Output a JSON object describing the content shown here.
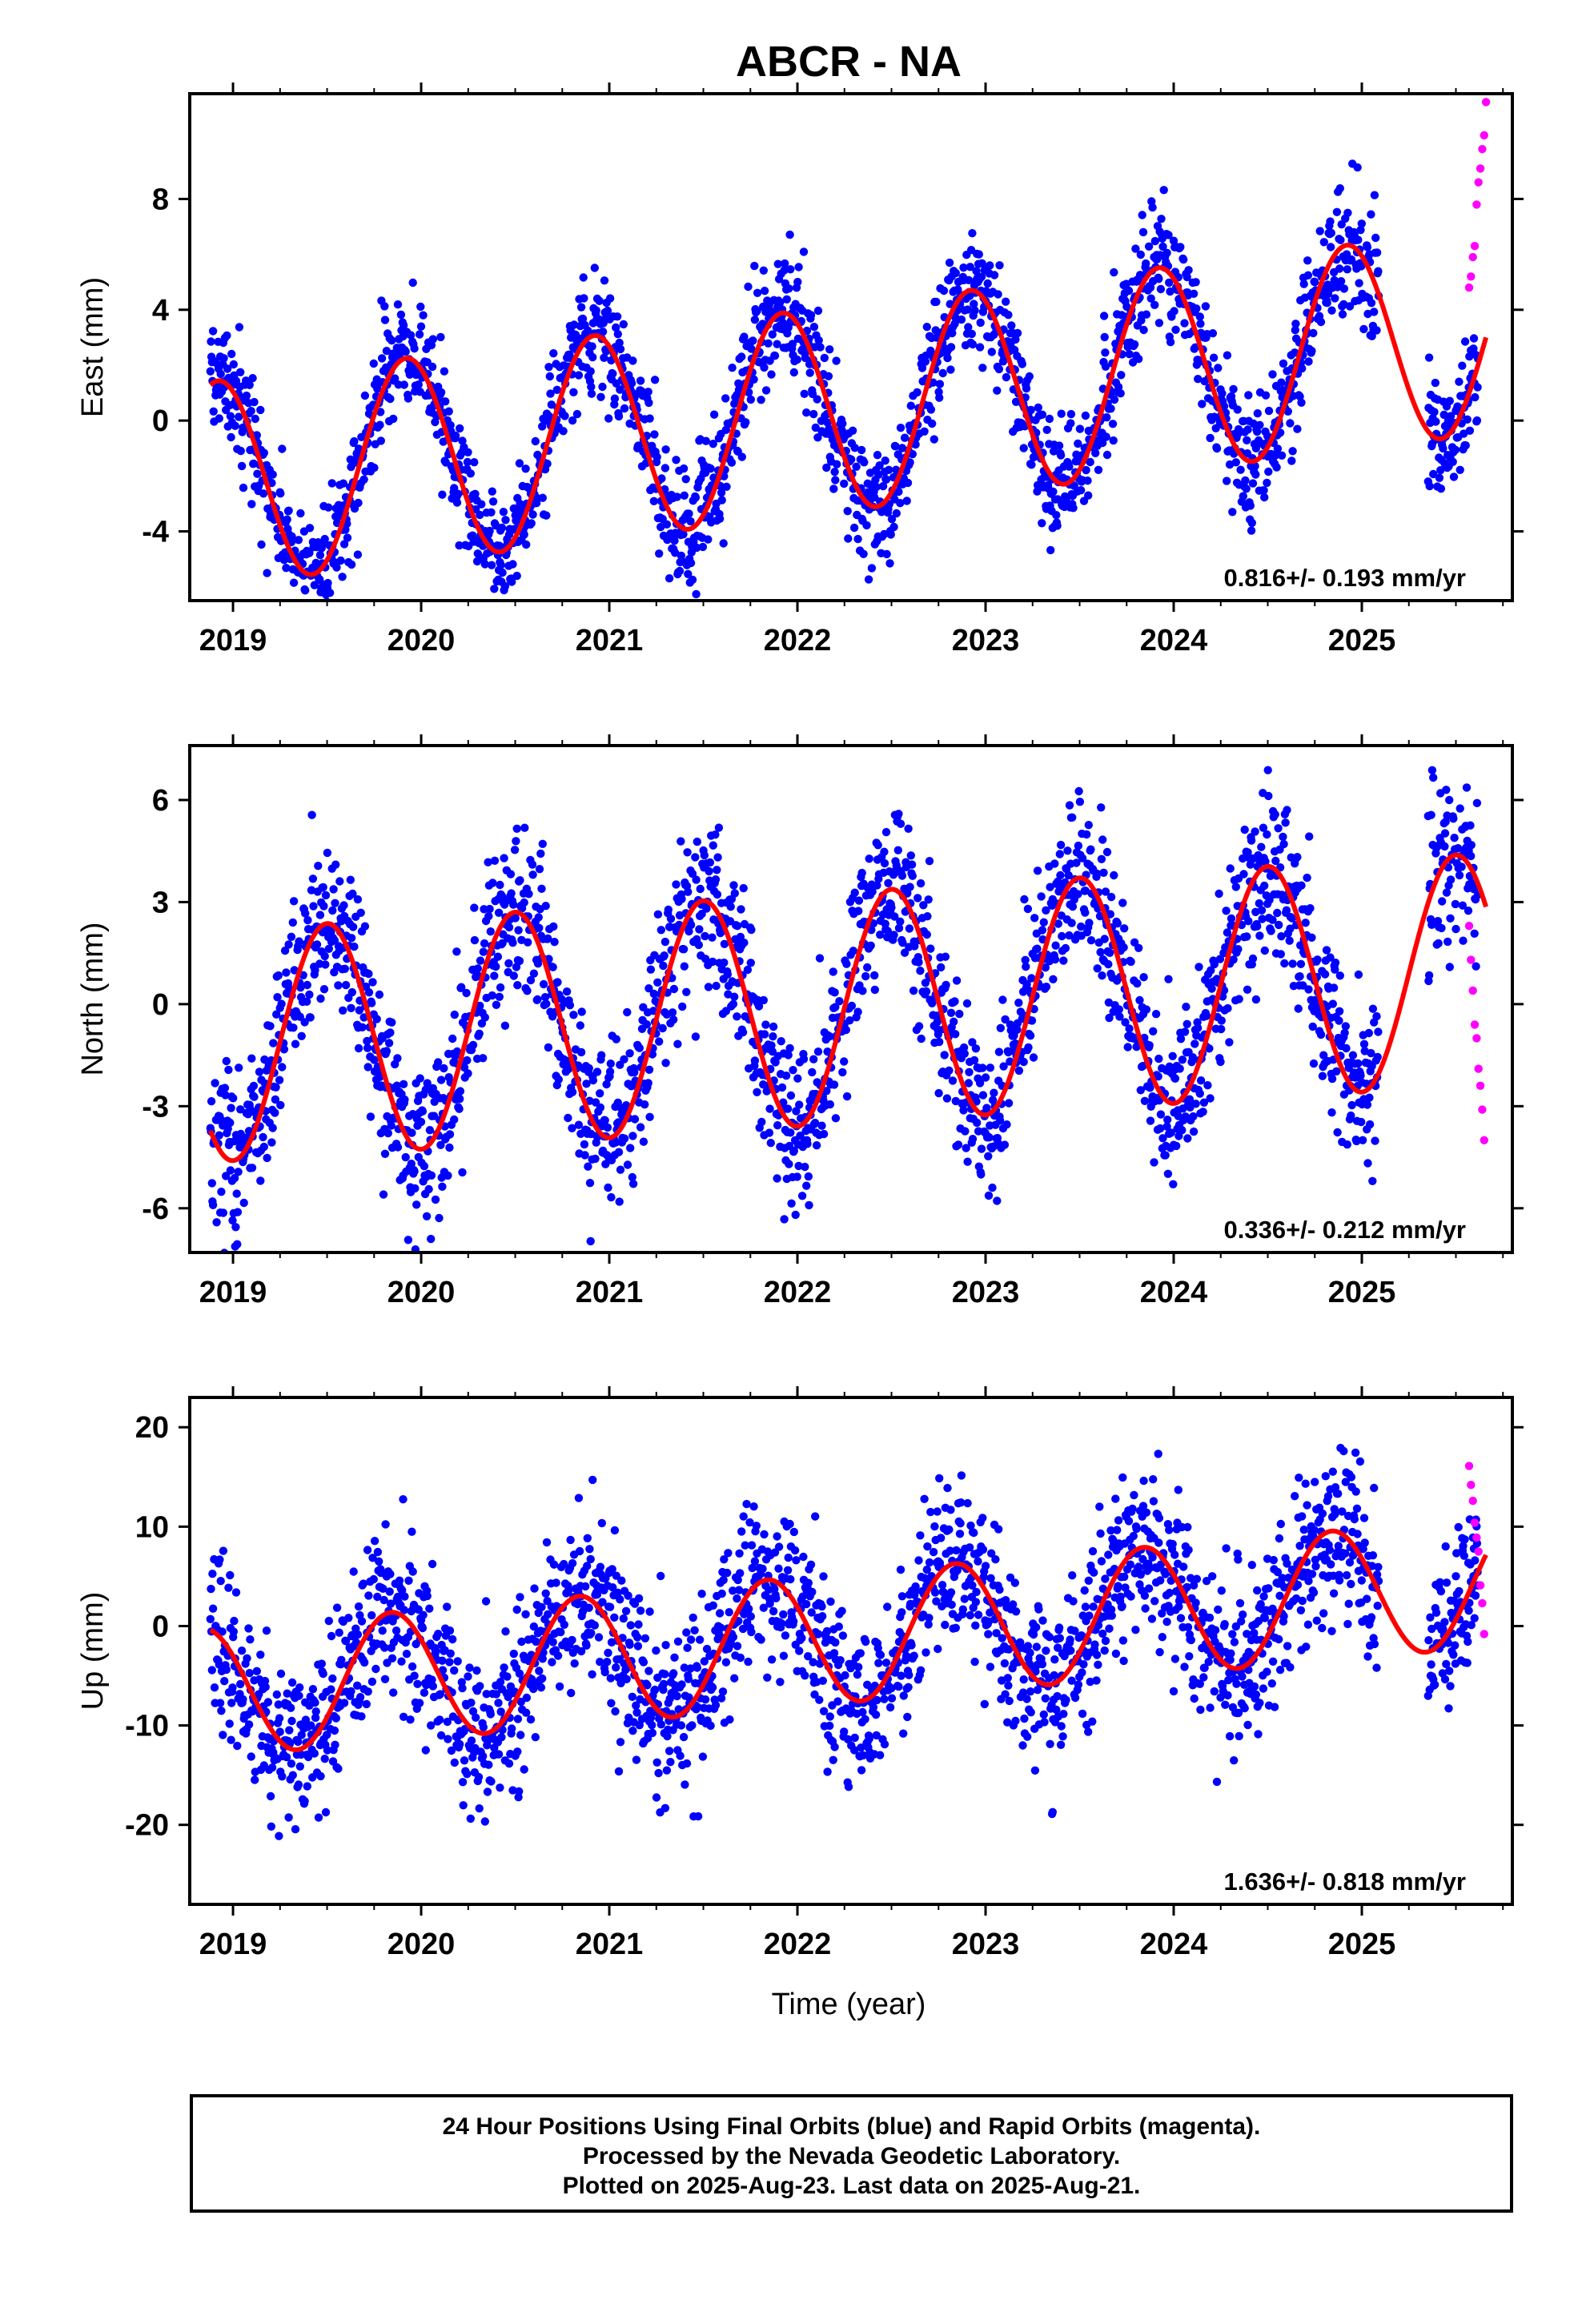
{
  "title": "ABCR - NA",
  "colors": {
    "final": "#0000ff",
    "rapid": "#ff00ff",
    "model": "#ff0000",
    "axis": "#000000"
  },
  "xaxis": {
    "label": "Time (year)",
    "range": [
      2018.77,
      2025.8
    ],
    "ticks": [
      "2019",
      "2020",
      "2021",
      "2022",
      "2023",
      "2024",
      "2025"
    ]
  },
  "chart_data": [
    {
      "type": "scatter",
      "component": "east",
      "ylabel": "East (mm)",
      "ylim": [
        -6.5,
        11.8
      ],
      "yticks": [
        -4,
        0,
        4,
        8
      ],
      "rate_label": "0.816+/- 0.193 mm/yr",
      "model": {
        "velocity": 0.816,
        "annual_amplitude": 3.7,
        "annual_peak": 0.92,
        "offset": -2.2
      },
      "scatter_sigma": 1.1,
      "rapid_points": [
        [
          2025.57,
          4.8
        ],
        [
          2025.58,
          5.2
        ],
        [
          2025.59,
          5.9
        ],
        [
          2025.6,
          6.3
        ],
        [
          2025.61,
          7.8
        ],
        [
          2025.62,
          8.6
        ],
        [
          2025.63,
          9.1
        ],
        [
          2025.64,
          9.8
        ],
        [
          2025.65,
          10.3
        ],
        [
          2025.66,
          11.5
        ]
      ]
    },
    {
      "type": "scatter",
      "component": "north",
      "ylabel": "North (mm)",
      "ylim": [
        -7.3,
        7.6
      ],
      "yticks": [
        -6,
        -3,
        0,
        3,
        6
      ],
      "rate_label": "0.336+/- 0.212 mm/yr",
      "model": {
        "velocity": 0.336,
        "annual_amplitude": 3.4,
        "annual_peak": 0.5,
        "offset": -1.2
      },
      "scatter_sigma": 1.2,
      "rapid_points": [
        [
          2025.57,
          2.3
        ],
        [
          2025.58,
          1.3
        ],
        [
          2025.59,
          0.4
        ],
        [
          2025.6,
          -0.6
        ],
        [
          2025.61,
          -1.0
        ],
        [
          2025.62,
          -1.9
        ],
        [
          2025.63,
          -2.4
        ],
        [
          2025.64,
          -3.1
        ],
        [
          2025.65,
          -4.0
        ]
      ]
    },
    {
      "type": "scatter",
      "component": "up",
      "ylabel": "Up (mm)",
      "ylim": [
        -28,
        23
      ],
      "yticks": [
        -20,
        -10,
        0,
        10,
        20
      ],
      "rate_label": "1.636+/- 0.818 mm/yr",
      "model": {
        "velocity": 1.636,
        "annual_amplitude": 6.5,
        "annual_peak": 0.84,
        "offset": -6.5
      },
      "scatter_sigma": 4.2,
      "rapid_points": [
        [
          2025.57,
          16.1
        ],
        [
          2025.58,
          14.2
        ],
        [
          2025.59,
          12.6
        ],
        [
          2025.6,
          10.4
        ],
        [
          2025.61,
          8.9
        ],
        [
          2025.62,
          7.5
        ],
        [
          2025.63,
          4.1
        ],
        [
          2025.64,
          2.3
        ],
        [
          2025.65,
          -0.8
        ]
      ]
    }
  ],
  "footer": [
    "24 Hour Positions Using Final Orbits (blue) and Rapid Orbits (magenta).",
    "Processed by the Nevada Geodetic Laboratory.",
    "Plotted on 2025-Aug-23. Last data on 2025-Aug-21."
  ]
}
